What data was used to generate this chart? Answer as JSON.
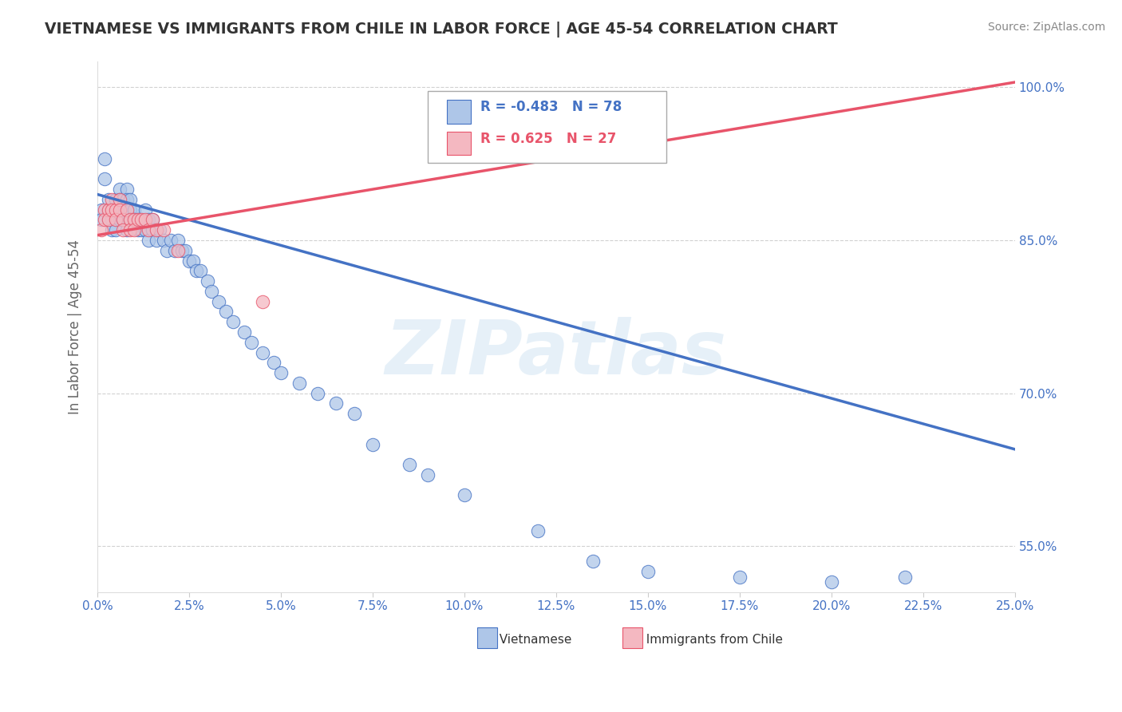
{
  "title": "VIETNAMESE VS IMMIGRANTS FROM CHILE IN LABOR FORCE | AGE 45-54 CORRELATION CHART",
  "source_text": "Source: ZipAtlas.com",
  "xlabel_ticks": [
    "0.0%",
    "2.5%",
    "5.0%",
    "7.5%",
    "10.0%",
    "12.5%",
    "15.0%",
    "17.5%",
    "20.0%",
    "22.5%",
    "25.0%"
  ],
  "ylabel_ticks": [
    "55.0%",
    "70.0%",
    "85.0%",
    "100.0%"
  ],
  "ylabel_label": "In Labor Force | Age 45-54",
  "xlim": [
    0.0,
    0.25
  ],
  "ylim": [
    0.505,
    1.025
  ],
  "R_vietnamese": -0.483,
  "N_vietnamese": 78,
  "R_chile": 0.625,
  "N_chile": 27,
  "viet_color": "#aec6e8",
  "chile_color": "#f4b8c1",
  "viet_line_color": "#4472c4",
  "chile_line_color": "#e8546a",
  "watermark": "ZIPatlas",
  "background_color": "#ffffff",
  "grid_color": "#cccccc",
  "tick_label_color": "#4472c4",
  "title_color": "#333333",
  "viet_scatter_x": [
    0.001,
    0.001,
    0.002,
    0.002,
    0.003,
    0.003,
    0.003,
    0.004,
    0.004,
    0.004,
    0.005,
    0.005,
    0.005,
    0.005,
    0.006,
    0.006,
    0.006,
    0.006,
    0.007,
    0.007,
    0.007,
    0.008,
    0.008,
    0.008,
    0.008,
    0.009,
    0.009,
    0.009,
    0.01,
    0.01,
    0.011,
    0.011,
    0.012,
    0.012,
    0.013,
    0.013,
    0.014,
    0.014,
    0.015,
    0.015,
    0.016,
    0.016,
    0.017,
    0.018,
    0.019,
    0.02,
    0.021,
    0.022,
    0.023,
    0.024,
    0.025,
    0.026,
    0.027,
    0.028,
    0.03,
    0.031,
    0.033,
    0.035,
    0.037,
    0.04,
    0.042,
    0.045,
    0.048,
    0.05,
    0.055,
    0.06,
    0.065,
    0.07,
    0.075,
    0.085,
    0.09,
    0.1,
    0.12,
    0.135,
    0.15,
    0.175,
    0.2,
    0.22
  ],
  "viet_scatter_y": [
    0.88,
    0.87,
    0.93,
    0.91,
    0.89,
    0.88,
    0.87,
    0.88,
    0.87,
    0.86,
    0.89,
    0.88,
    0.87,
    0.86,
    0.9,
    0.89,
    0.88,
    0.87,
    0.89,
    0.88,
    0.87,
    0.9,
    0.89,
    0.88,
    0.86,
    0.89,
    0.88,
    0.87,
    0.88,
    0.87,
    0.87,
    0.86,
    0.87,
    0.86,
    0.88,
    0.86,
    0.87,
    0.85,
    0.87,
    0.86,
    0.86,
    0.85,
    0.86,
    0.85,
    0.84,
    0.85,
    0.84,
    0.85,
    0.84,
    0.84,
    0.83,
    0.83,
    0.82,
    0.82,
    0.81,
    0.8,
    0.79,
    0.78,
    0.77,
    0.76,
    0.75,
    0.74,
    0.73,
    0.72,
    0.71,
    0.7,
    0.69,
    0.68,
    0.65,
    0.63,
    0.62,
    0.6,
    0.565,
    0.535,
    0.525,
    0.52,
    0.515,
    0.52
  ],
  "chile_scatter_x": [
    0.001,
    0.002,
    0.002,
    0.003,
    0.003,
    0.004,
    0.004,
    0.005,
    0.005,
    0.006,
    0.006,
    0.007,
    0.007,
    0.008,
    0.009,
    0.009,
    0.01,
    0.01,
    0.011,
    0.012,
    0.013,
    0.014,
    0.015,
    0.016,
    0.018,
    0.022,
    0.045
  ],
  "chile_scatter_y": [
    0.86,
    0.88,
    0.87,
    0.88,
    0.87,
    0.89,
    0.88,
    0.88,
    0.87,
    0.89,
    0.88,
    0.87,
    0.86,
    0.88,
    0.87,
    0.86,
    0.87,
    0.86,
    0.87,
    0.87,
    0.87,
    0.86,
    0.87,
    0.86,
    0.86,
    0.84,
    0.79
  ],
  "viet_trendline_x": [
    0.0,
    0.25
  ],
  "viet_trendline_y": [
    0.895,
    0.645
  ],
  "chile_trendline_x": [
    0.0,
    0.25
  ],
  "chile_trendline_y": [
    0.855,
    1.005
  ]
}
